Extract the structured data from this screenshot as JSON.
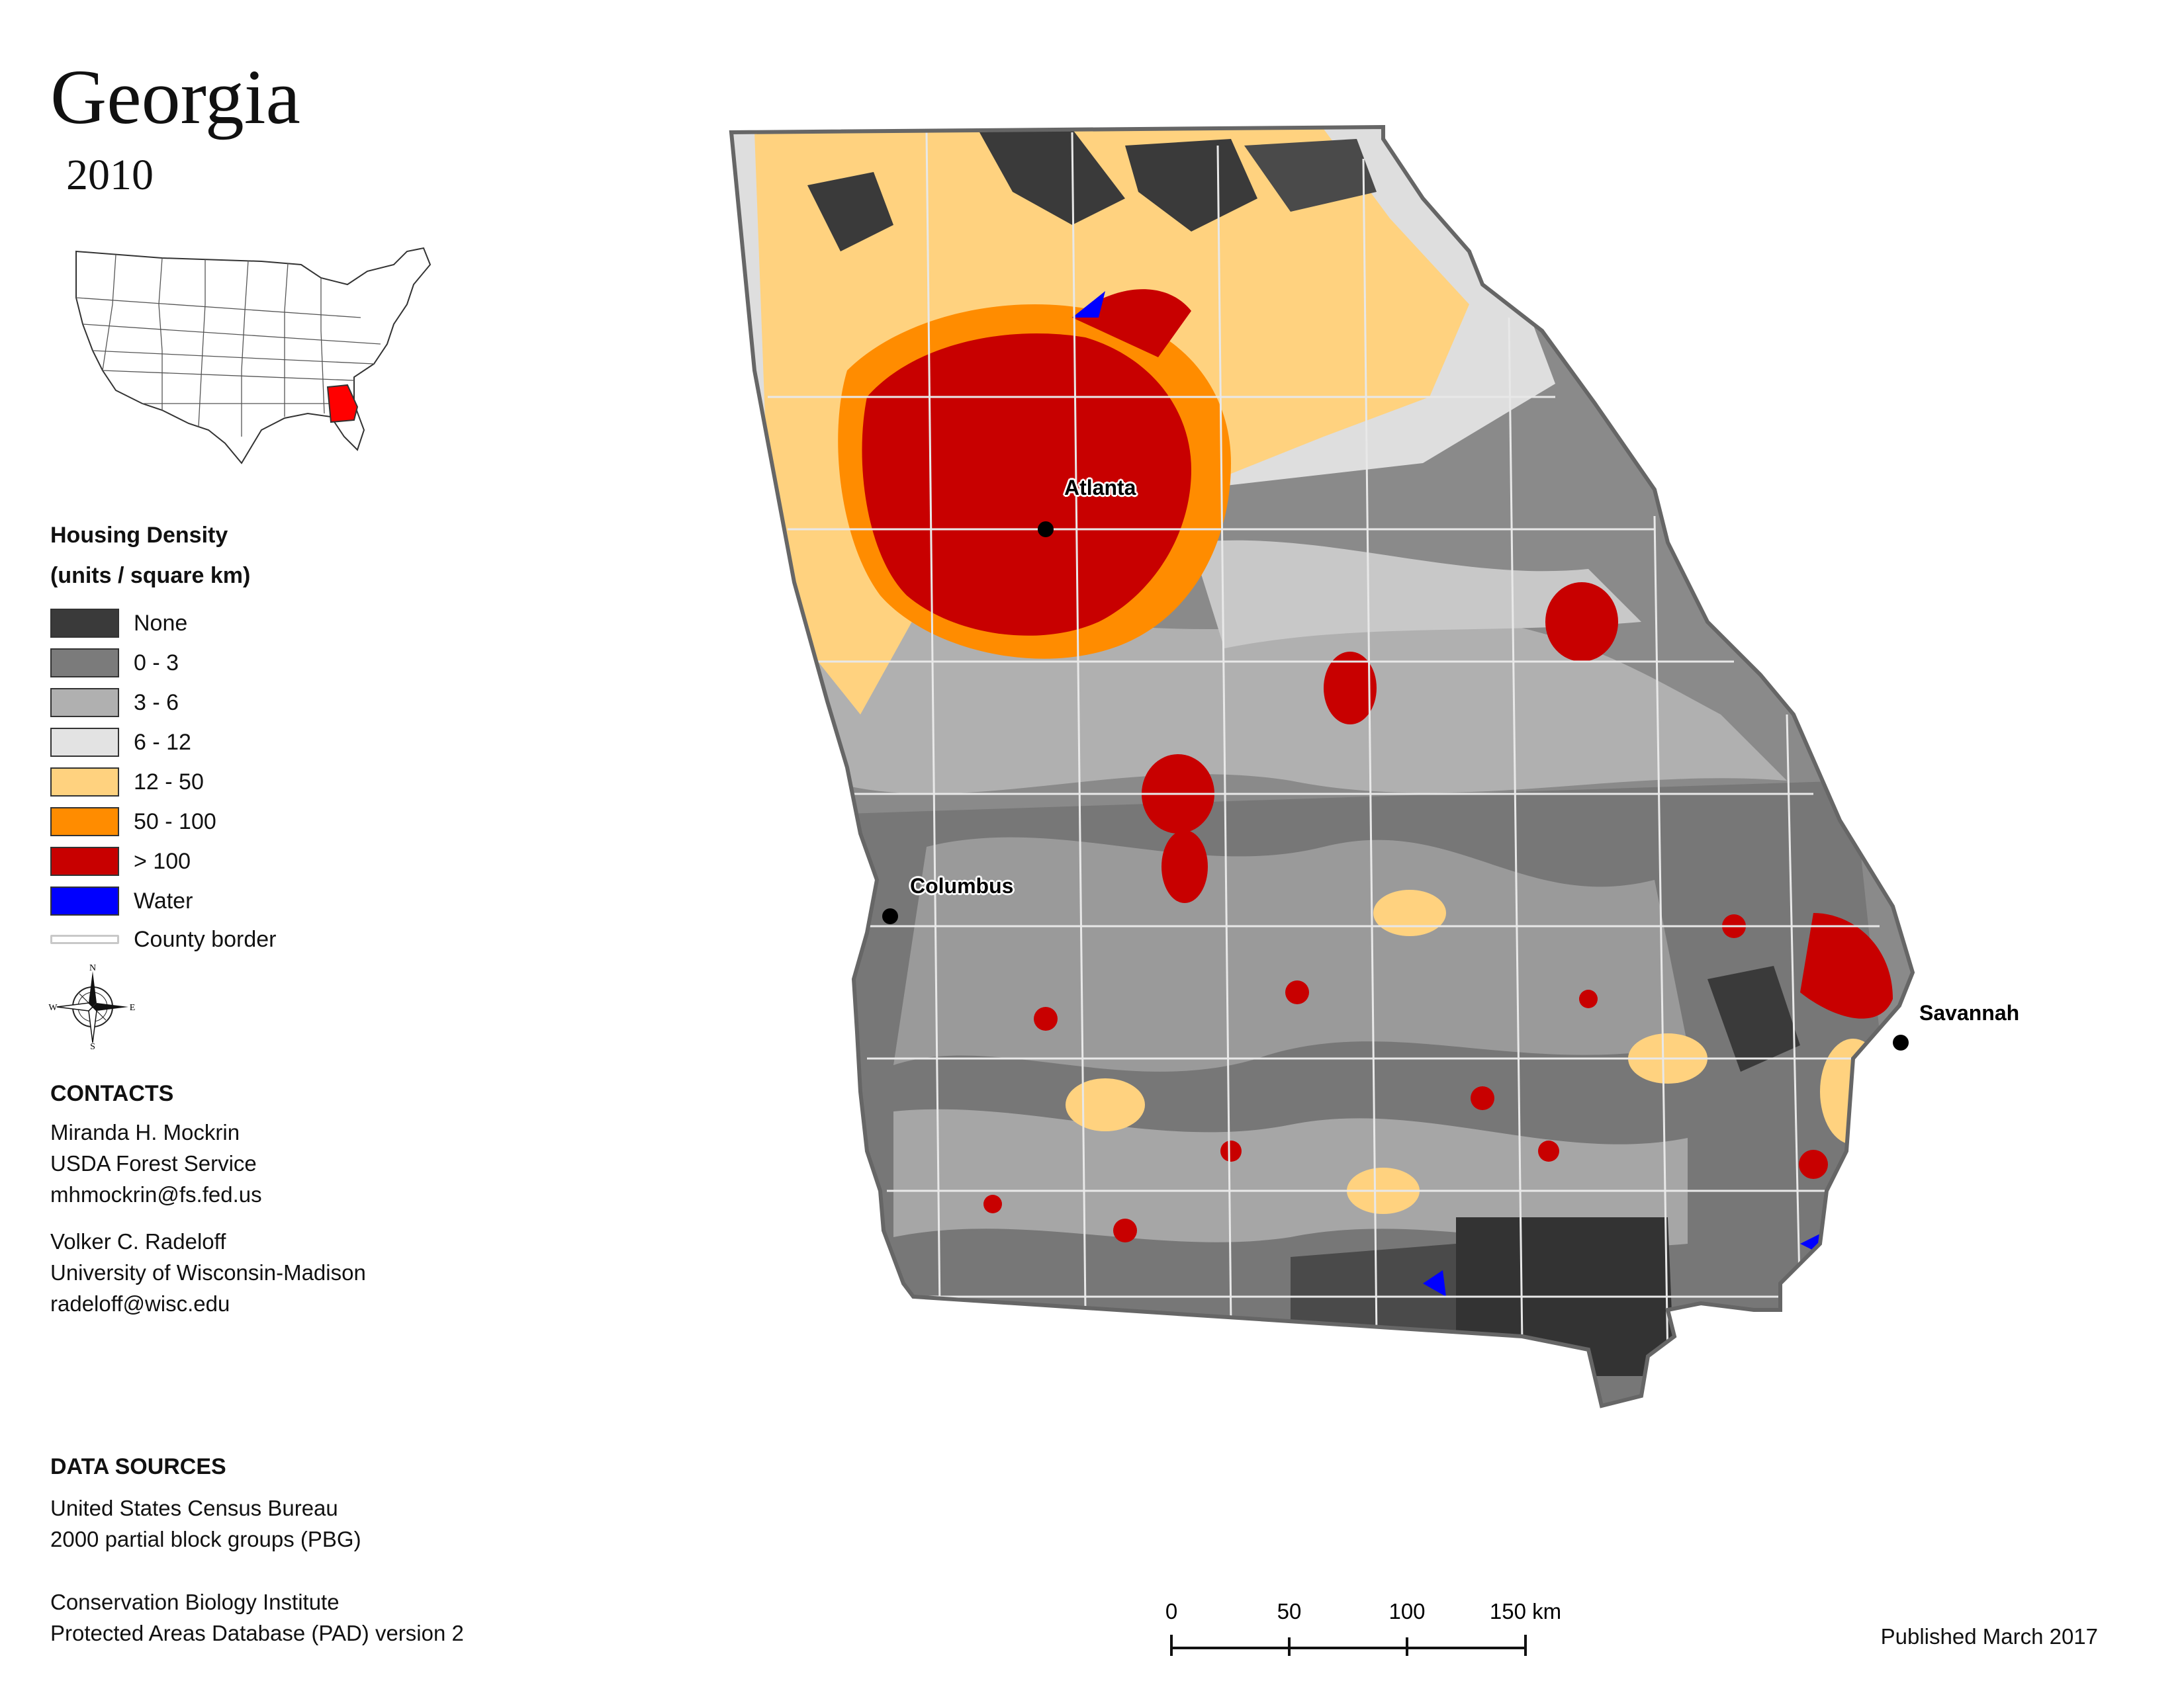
{
  "title": "Georgia",
  "year": "2010",
  "legend": {
    "title_line1": "Housing Density",
    "title_line2": "(units / square km)",
    "items": [
      {
        "label": "None",
        "color": "#3a3a3a"
      },
      {
        "label": "0 - 3",
        "color": "#7b7b7b"
      },
      {
        "label": "3 - 6",
        "color": "#b0b0b0"
      },
      {
        "label": "6 - 12",
        "color": "#e3e3e3"
      },
      {
        "label": "12 - 50",
        "color": "#ffd27f"
      },
      {
        "label": "50 - 100",
        "color": "#ff8c00"
      },
      {
        "label": "> 100",
        "color": "#c80000"
      },
      {
        "label": "Water",
        "color": "#0000ff"
      }
    ],
    "county_border_label": "County border"
  },
  "compass": {
    "n": "N",
    "s": "S",
    "e": "E",
    "w": "W"
  },
  "contacts": {
    "heading": "CONTACTS",
    "person1": [
      "Miranda H. Mockrin",
      "USDA Forest Service",
      "mhmockrin@fs.fed.us"
    ],
    "person2": [
      "Volker C. Radeloff",
      "University of Wisconsin-Madison",
      "radeloff@wisc.edu"
    ]
  },
  "data_sources": {
    "heading": "DATA SOURCES",
    "source1": [
      "United States Census Bureau",
      "2000 partial block groups (PBG)"
    ],
    "source2": [
      "Conservation Biology Institute",
      "Protected Areas Database (PAD) version 2"
    ]
  },
  "cities": [
    {
      "name": "Atlanta"
    },
    {
      "name": "Columbus"
    },
    {
      "name": "Savannah"
    }
  ],
  "scale": {
    "ticks": [
      "0",
      "50",
      "100",
      "150 km"
    ]
  },
  "published": "Published March 2017",
  "inset_highlight_color": "#ff0000"
}
